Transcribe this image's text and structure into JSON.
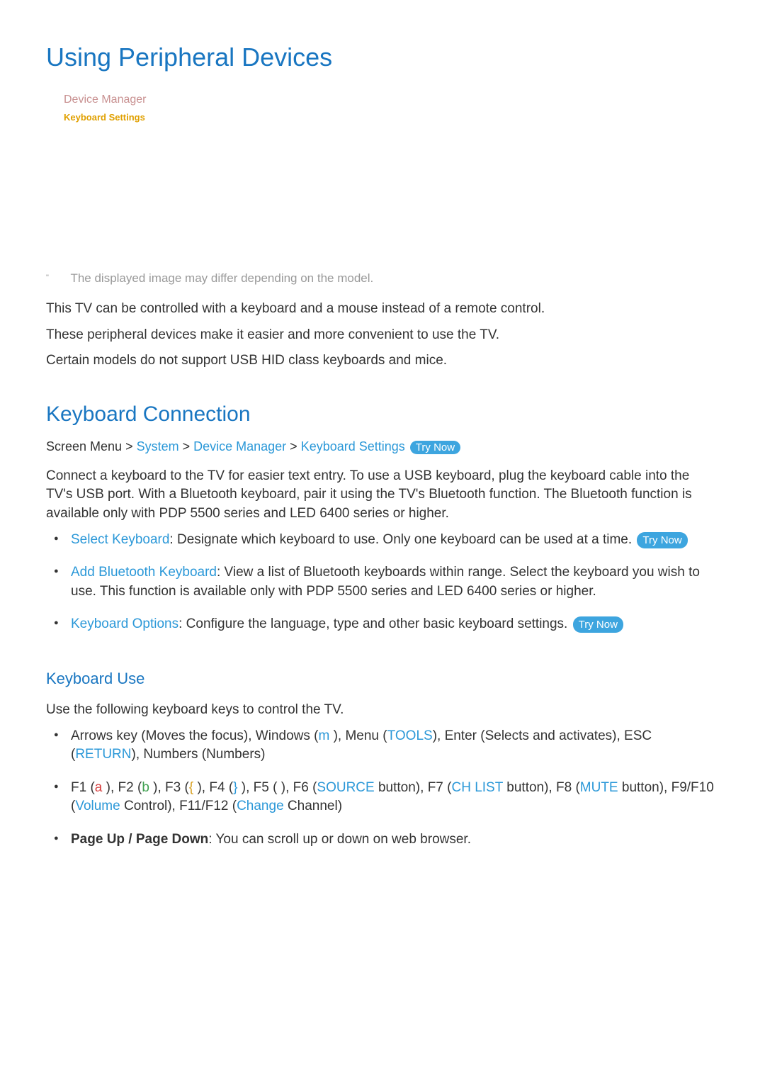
{
  "title": "Using Peripheral Devices",
  "menu": {
    "device_manager": "Device Manager",
    "keyboard_settings": "Keyboard Settings"
  },
  "note": {
    "mark": "\"",
    "text": "The displayed image may differ depending on the model."
  },
  "intro": {
    "p1": "This TV can be controlled with a keyboard and a mouse instead of a remote control.",
    "p2": "These peripheral devices make it easier and more convenient to use the TV.",
    "p3": "Certain models do not support USB HID class keyboards and mice."
  },
  "keyboard_connection": {
    "heading": "Keyboard Connection",
    "breadcrumb": {
      "prefix": "Screen Menu",
      "sep": " > ",
      "system": "System",
      "device_manager": "Device Manager",
      "keyboard_settings": "Keyboard Settings"
    },
    "try_now": "Try Now",
    "desc": "Connect a keyboard to the TV for easier text entry. To use a USB keyboard, plug the keyboard cable into the TV's USB port. With a Bluetooth keyboard, pair it using the TV's Bluetooth function. The Bluetooth function is available only with PDP 5500 series and LED 6400 series or higher.",
    "items": {
      "select_keyboard": {
        "name": "Select Keyboard",
        "text": ": Designate which keyboard to use. Only one keyboard can be used at a time. "
      },
      "add_bt": {
        "name": "Add Bluetooth Keyboard",
        "text": ": View a list of Bluetooth keyboards within range. Select the keyboard you wish to use. This function is available only with PDP 5500 series and LED 6400 series or higher."
      },
      "options": {
        "name": "Keyboard Options",
        "text": ": Configure the language, type and other basic keyboard settings. "
      }
    }
  },
  "keyboard_use": {
    "heading": "Keyboard Use",
    "intro": "Use the following keyboard keys to control the TV.",
    "row1": {
      "t1": "Arrows key (Moves the focus), Windows (",
      "m": "m",
      "t2": " ), Menu (",
      "tools": "TOOLS",
      "t3": "), Enter (Selects and activates), ESC (",
      "return": "RETURN",
      "t4": "), Numbers (Numbers)"
    },
    "row2": {
      "t1": "F1 (",
      "a": "a",
      "t2": " ), F2 (",
      "b": "b",
      "t3": " ), F3 (",
      "lb": "{",
      "t4": " ), F4 (",
      "rb": "}",
      "t5": " ), F5 (    ), F6 (",
      "source": "SOURCE",
      "t6": " button), F7 (",
      "chlist": "CH LIST",
      "t7": " button), F8 (",
      "mute": "MUTE",
      "t8": " button), F9/F10 (",
      "volume": "Volume",
      "t9": " Control), F11/F12 (",
      "change": "Change",
      "t10": " Channel)"
    },
    "row3": {
      "name": "Page Up / Page Down",
      "text": ": You can scroll up or down on web browser."
    }
  },
  "colors": {
    "heading_blue": "#1976c1",
    "link_blue": "#2b98d8",
    "try_now_bg": "#3da5df",
    "warm_pink": "#c89090",
    "amber": "#e0a000",
    "red": "#d84040",
    "green": "#3fa050",
    "yellow": "#d8a020",
    "grey": "#999999"
  }
}
